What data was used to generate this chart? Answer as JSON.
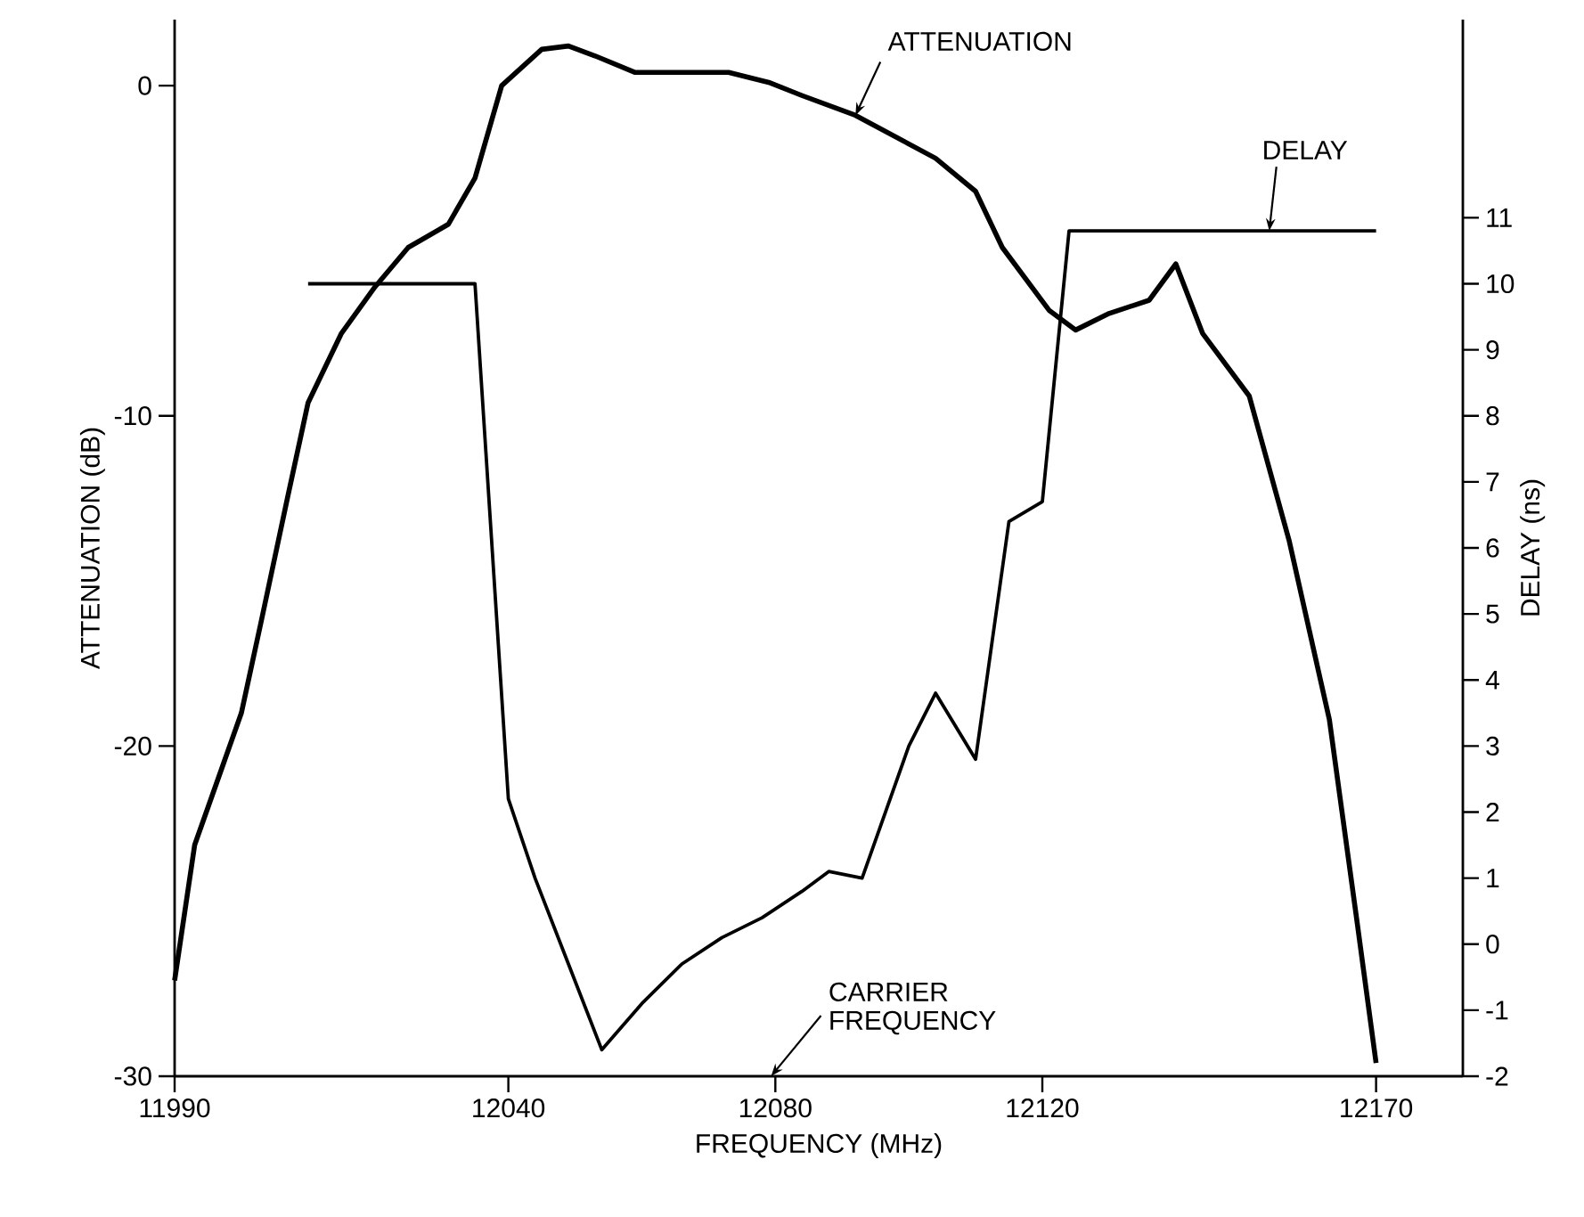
{
  "chart_data": {
    "type": "line",
    "xlabel": "FREQUENCY (MHz)",
    "ylabel": "ATTENUATION (dB)",
    "y2label": "DELAY (ns)",
    "xlim": [
      11990,
      12183
    ],
    "ylim": [
      -30,
      2
    ],
    "y2lim": [
      -2,
      14
    ],
    "xticks": [
      11990,
      12040,
      12080,
      12120,
      12170
    ],
    "yticks": [
      -30,
      -20,
      -10,
      0
    ],
    "y2ticks": [
      -2,
      -1,
      0,
      1,
      2,
      3,
      4,
      5,
      6,
      7,
      8,
      9,
      10,
      11
    ],
    "grid": false,
    "line_style": "solid",
    "series": [
      {
        "color": "#000000",
        "x": [
          11990,
          11993,
          12000,
          12003,
          12007,
          12010,
          12015,
          12020,
          12025,
          12031,
          12035,
          12039,
          12045,
          12049,
          12053,
          12059,
          12065,
          12073,
          12079,
          12084,
          12092,
          12104,
          12110,
          12114,
          12121,
          12125,
          12130,
          12136,
          12140,
          12144,
          12151,
          12157,
          12163,
          12167,
          12170
        ],
        "values": [
          -27.1,
          -23.0,
          -19.0,
          -16.2,
          -12.4,
          -9.6,
          -7.5,
          -6.1,
          -4.9,
          -4.2,
          -2.8,
          0.0,
          1.1,
          1.2,
          0.9,
          0.4,
          0.4,
          0.4,
          0.1,
          -0.3,
          -0.9,
          -2.2,
          -3.2,
          -4.9,
          -6.8,
          -7.4,
          -6.9,
          -6.5,
          -5.4,
          -7.5,
          -9.4,
          -13.8,
          -19.2,
          -25.1,
          -29.6
        ]
      },
      {
        "color": "#000000",
        "axis": "y2",
        "x": [
          12010,
          12035,
          12040,
          12044,
          12049,
          12054,
          12060,
          12066,
          12072,
          12078,
          12084,
          12088,
          12093,
          12100,
          12104,
          12110,
          12115,
          12120,
          12124,
          12170
        ],
        "values": [
          10.0,
          10.0,
          2.2,
          1.0,
          -0.3,
          -1.6,
          -0.9,
          -0.3,
          0.1,
          0.4,
          0.8,
          1.1,
          1.0,
          3.0,
          3.8,
          2.8,
          6.4,
          6.7,
          10.8,
          10.8
        ]
      }
    ],
    "annotations": [
      {
        "text": "ATTENUATION",
        "x": 12092,
        "y": -0.9
      },
      {
        "text": "DELAY",
        "x": 12154,
        "y": -4.4
      },
      "CARRIER FREQUENCY"
    ]
  }
}
